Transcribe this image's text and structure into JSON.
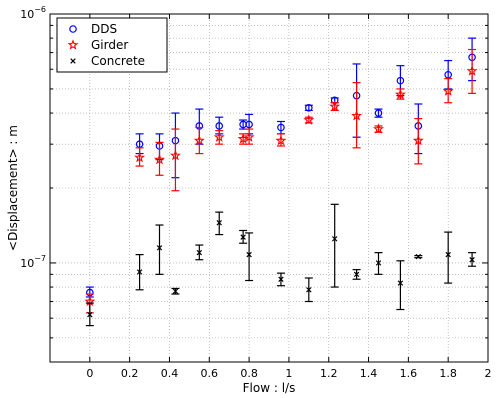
{
  "chart_data": {
    "type": "scatter",
    "title": "",
    "xlabel": "Flow : l/s",
    "ylabel": "<Displacement> : m",
    "xlim": [
      -0.2,
      2.0
    ],
    "ylim": [
      4e-08,
      1e-06
    ],
    "yscale": "log",
    "grid": true,
    "legend_position": "top-left",
    "x_ticks": [
      {
        "value": 0,
        "label": "0"
      },
      {
        "value": 0.2,
        "label": "0.2"
      },
      {
        "value": 0.4,
        "label": "0.4"
      },
      {
        "value": 0.6,
        "label": "0.6"
      },
      {
        "value": 0.8,
        "label": "0.8"
      },
      {
        "value": 1.0,
        "label": "1"
      },
      {
        "value": 1.2,
        "label": "1.2"
      },
      {
        "value": 1.4,
        "label": "1.4"
      },
      {
        "value": 1.6,
        "label": "1.6"
      },
      {
        "value": 1.8,
        "label": "1.8"
      },
      {
        "value": 2.0,
        "label": "2"
      }
    ],
    "y_ticks": [
      {
        "value": 1e-07,
        "base": "10",
        "exp": "−7"
      },
      {
        "value": 1e-06,
        "base": "10",
        "exp": "−6"
      }
    ],
    "series": [
      {
        "name": "DDS",
        "marker": "circle",
        "color": "#0000ff",
        "points": [
          {
            "x": 0,
            "y": 7.6e-08,
            "lo": 7.3e-08,
            "hi": 8e-08
          },
          {
            "x": 0.25,
            "y": 3e-07,
            "lo": 2.75e-07,
            "hi": 3.3e-07
          },
          {
            "x": 0.35,
            "y": 2.95e-07,
            "lo": 2.6e-07,
            "hi": 3.3e-07
          },
          {
            "x": 0.43,
            "y": 3.1e-07,
            "lo": 2.2e-07,
            "hi": 4e-07
          },
          {
            "x": 0.55,
            "y": 3.55e-07,
            "lo": 3e-07,
            "hi": 4.15e-07
          },
          {
            "x": 0.65,
            "y": 3.55e-07,
            "lo": 3.3e-07,
            "hi": 3.85e-07
          },
          {
            "x": 0.77,
            "y": 3.6e-07,
            "lo": 3.45e-07,
            "hi": 3.75e-07
          },
          {
            "x": 0.8,
            "y": 3.6e-07,
            "lo": 3.3e-07,
            "hi": 3.95e-07
          },
          {
            "x": 0.96,
            "y": 3.5e-07,
            "lo": 3.3e-07,
            "hi": 3.7e-07
          },
          {
            "x": 1.1,
            "y": 4.2e-07,
            "lo": 4.1e-07,
            "hi": 4.3e-07
          },
          {
            "x": 1.23,
            "y": 4.5e-07,
            "lo": 4.4e-07,
            "hi": 4.6e-07
          },
          {
            "x": 1.34,
            "y": 4.7e-07,
            "lo": 3.2e-07,
            "hi": 6.3e-07
          },
          {
            "x": 1.45,
            "y": 4e-07,
            "lo": 3.85e-07,
            "hi": 4.15e-07
          },
          {
            "x": 1.56,
            "y": 5.4e-07,
            "lo": 4.7e-07,
            "hi": 6.2e-07
          },
          {
            "x": 1.65,
            "y": 3.55e-07,
            "lo": 2.75e-07,
            "hi": 4.35e-07
          },
          {
            "x": 1.8,
            "y": 5.7e-07,
            "lo": 5e-07,
            "hi": 6.5e-07
          },
          {
            "x": 1.92,
            "y": 6.7e-07,
            "lo": 5.4e-07,
            "hi": 8e-07
          }
        ]
      },
      {
        "name": "Girder",
        "marker": "star",
        "color": "#ff0000",
        "points": [
          {
            "x": 0,
            "y": 7e-08,
            "lo": 6.3e-08,
            "hi": 7.5e-08
          },
          {
            "x": 0.25,
            "y": 2.65e-07,
            "lo": 2.45e-07,
            "hi": 2.9e-07
          },
          {
            "x": 0.35,
            "y": 2.6e-07,
            "lo": 2.25e-07,
            "hi": 3.05e-07
          },
          {
            "x": 0.43,
            "y": 2.7e-07,
            "lo": 1.95e-07,
            "hi": 3.45e-07
          },
          {
            "x": 0.55,
            "y": 3.1e-07,
            "lo": 2.75e-07,
            "hi": 3.5e-07
          },
          {
            "x": 0.65,
            "y": 3.2e-07,
            "lo": 3e-07,
            "hi": 3.4e-07
          },
          {
            "x": 0.77,
            "y": 3.15e-07,
            "lo": 3e-07,
            "hi": 3.3e-07
          },
          {
            "x": 0.8,
            "y": 3.2e-07,
            "lo": 3e-07,
            "hi": 3.45e-07
          },
          {
            "x": 0.96,
            "y": 3.1e-07,
            "lo": 2.95e-07,
            "hi": 3.3e-07
          },
          {
            "x": 1.1,
            "y": 3.75e-07,
            "lo": 3.65e-07,
            "hi": 3.85e-07
          },
          {
            "x": 1.23,
            "y": 4.25e-07,
            "lo": 4.1e-07,
            "hi": 4.4e-07
          },
          {
            "x": 1.34,
            "y": 3.9e-07,
            "lo": 2.9e-07,
            "hi": 5.3e-07
          },
          {
            "x": 1.45,
            "y": 3.45e-07,
            "lo": 3.35e-07,
            "hi": 3.55e-07
          },
          {
            "x": 1.56,
            "y": 4.75e-07,
            "lo": 4.55e-07,
            "hi": 5e-07
          },
          {
            "x": 1.65,
            "y": 3.1e-07,
            "lo": 2.5e-07,
            "hi": 3.8e-07
          },
          {
            "x": 1.8,
            "y": 4.9e-07,
            "lo": 4.4e-07,
            "hi": 5.5e-07
          },
          {
            "x": 1.92,
            "y": 5.9e-07,
            "lo": 4.8e-07,
            "hi": 7.2e-07
          }
        ]
      },
      {
        "name": "Concrete",
        "marker": "x",
        "color": "#000000",
        "points": [
          {
            "x": 0,
            "y": 6.2e-08,
            "lo": 5.6e-08,
            "hi": 6.9e-08
          },
          {
            "x": 0.25,
            "y": 9.2e-08,
            "lo": 7.8e-08,
            "hi": 1.08e-07
          },
          {
            "x": 0.35,
            "y": 1.15e-07,
            "lo": 9e-08,
            "hi": 1.42e-07
          },
          {
            "x": 0.43,
            "y": 7.7e-08,
            "lo": 7.5e-08,
            "hi": 7.9e-08
          },
          {
            "x": 0.55,
            "y": 1.1e-07,
            "lo": 1.03e-07,
            "hi": 1.18e-07
          },
          {
            "x": 0.65,
            "y": 1.45e-07,
            "lo": 1.3e-07,
            "hi": 1.6e-07
          },
          {
            "x": 0.77,
            "y": 1.27e-07,
            "lo": 1.2e-07,
            "hi": 1.35e-07
          },
          {
            "x": 0.8,
            "y": 1.08e-07,
            "lo": 8.5e-08,
            "hi": 1.32e-07
          },
          {
            "x": 0.96,
            "y": 8.6e-08,
            "lo": 8.1e-08,
            "hi": 9.1e-08
          },
          {
            "x": 1.1,
            "y": 7.8e-08,
            "lo": 7e-08,
            "hi": 8.7e-08
          },
          {
            "x": 1.23,
            "y": 1.25e-07,
            "lo": 8e-08,
            "hi": 1.72e-07
          },
          {
            "x": 1.34,
            "y": 9e-08,
            "lo": 8.6e-08,
            "hi": 9.4e-08
          },
          {
            "x": 1.45,
            "y": 1e-07,
            "lo": 9e-08,
            "hi": 1.1e-07
          },
          {
            "x": 1.56,
            "y": 8.3e-08,
            "lo": 6.5e-08,
            "hi": 1.02e-07
          },
          {
            "x": 1.65,
            "y": 1.06e-07,
            "lo": 1.05e-07,
            "hi": 1.07e-07
          },
          {
            "x": 1.8,
            "y": 1.08e-07,
            "lo": 8.3e-08,
            "hi": 1.33e-07
          },
          {
            "x": 1.92,
            "y": 1.03e-07,
            "lo": 9.7e-08,
            "hi": 1.1e-07
          }
        ]
      }
    ]
  }
}
